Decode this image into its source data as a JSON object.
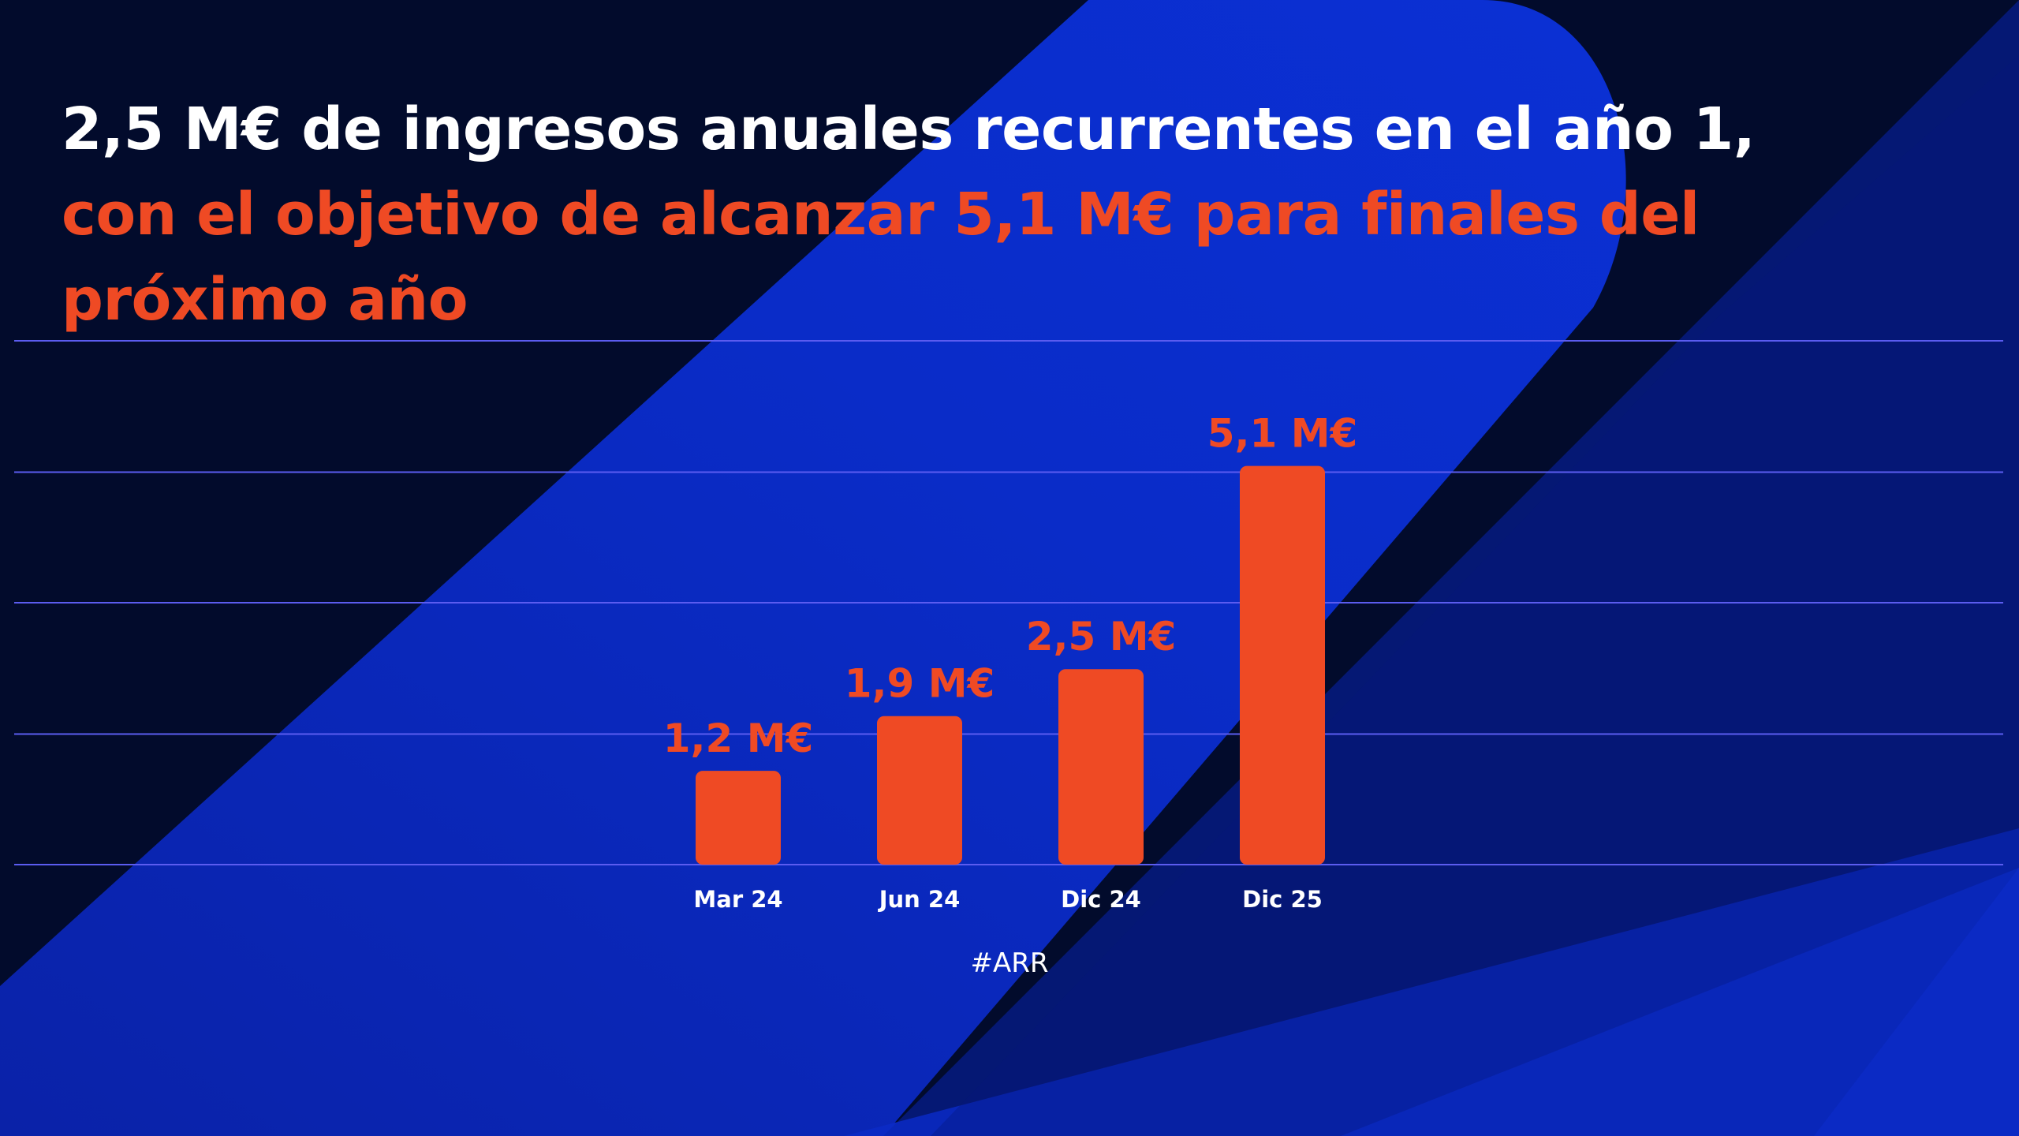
{
  "headline": {
    "part1": "2,5 M€ de ingresos anuales recurrentes en el año 1,",
    "part2": "con el objetivo de alcanzar 5,1 M€ para finales del próximo año"
  },
  "colors": {
    "background": "#020b2c",
    "blue_shape": "#0a2ac8",
    "bar": "#ef4a24",
    "gridline": "#5b5cf0",
    "highlight_text": "#ef4a24",
    "text": "#ffffff"
  },
  "chart_data": {
    "type": "bar",
    "categories": [
      "Mar 24",
      "Jun 24",
      "Dic 24",
      "Dic 25"
    ],
    "values": [
      1.2,
      1.9,
      2.5,
      5.1
    ],
    "value_labels": [
      "1,2 M€",
      "1,9 M€",
      "2,5 M€",
      "5,1 M€"
    ],
    "xlabel": "#ARR",
    "ylabel": "",
    "ylim": [
      0,
      6.7
    ],
    "grid": true,
    "gridline_values": [
      0,
      1.67,
      3.35,
      5.02,
      6.7
    ],
    "legend": "none"
  }
}
